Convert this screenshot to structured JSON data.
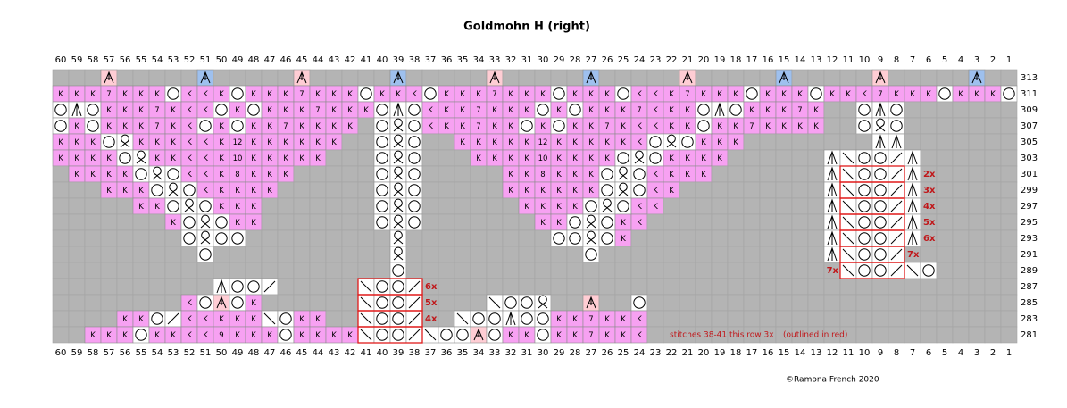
{
  "title": "Goldmohn H (right)",
  "columns": [
    60,
    59,
    58,
    57,
    56,
    55,
    54,
    53,
    52,
    51,
    50,
    49,
    48,
    47,
    46,
    45,
    44,
    43,
    42,
    41,
    40,
    39,
    38,
    37,
    36,
    35,
    34,
    33,
    32,
    31,
    30,
    29,
    28,
    27,
    26,
    25,
    24,
    23,
    22,
    21,
    20,
    19,
    18,
    17,
    16,
    15,
    14,
    13,
    12,
    11,
    10,
    9,
    8,
    7,
    6,
    5,
    4,
    3,
    2,
    1
  ],
  "colors": {
    "stitch": "#f7a1f2",
    "open": "#ffffff",
    "none": "#b4b4b4",
    "dec_pink": "#ffcdd4",
    "dec_blue": "#9ec0ee",
    "repeat": "#e01b1b"
  },
  "rows": [
    {
      "number": 313,
      "cells": [
        ".",
        ".",
        ".",
        "P",
        ".",
        ".",
        ".",
        ".",
        ".",
        "B",
        ".",
        ".",
        ".",
        ".",
        ".",
        "P",
        ".",
        ".",
        ".",
        ".",
        ".",
        "B",
        ".",
        ".",
        ".",
        ".",
        ".",
        "P",
        ".",
        ".",
        ".",
        ".",
        ".",
        "B",
        ".",
        ".",
        ".",
        ".",
        ".",
        "P",
        ".",
        ".",
        ".",
        ".",
        ".",
        "B",
        ".",
        ".",
        ".",
        ".",
        ".",
        "P",
        ".",
        ".",
        ".",
        ".",
        ".",
        "B",
        ".",
        "."
      ]
    },
    {
      "number": 311,
      "cells": [
        "K",
        "K",
        "K",
        "7",
        "K",
        "K",
        "K",
        "o",
        "K",
        "K",
        "K",
        "o",
        "K",
        "K",
        "K",
        "7",
        "K",
        "K",
        "K",
        "o",
        "K",
        "K",
        "K",
        "o",
        "K",
        "K",
        "K",
        "7",
        "K",
        "K",
        "K",
        "o",
        "K",
        "K",
        "K",
        "o",
        "K",
        "K",
        "K",
        "7",
        "K",
        "K",
        "K",
        "o",
        "K",
        "K",
        "K",
        "o",
        "K",
        "K",
        "K",
        "7",
        "K",
        "K",
        "K",
        "o",
        "K",
        "K",
        "K",
        "o"
      ]
    },
    {
      "number": 309,
      "cells": [
        "o",
        "^",
        "o",
        "K",
        "K",
        "K",
        "7",
        "K",
        "K",
        "K",
        "o",
        "K",
        "o",
        "K",
        "K",
        "K",
        "7",
        "K",
        "K",
        "K",
        "o",
        "^",
        "o",
        "K",
        "K",
        "K",
        "7",
        "K",
        "K",
        "K",
        "o",
        "K",
        "o",
        "K",
        "K",
        "K",
        "7",
        "K",
        "K",
        "K",
        "o",
        "^",
        "o",
        "K",
        "K",
        "K",
        "7",
        "K",
        ".",
        ".",
        "o",
        "^",
        "o",
        ".",
        ".",
        ".",
        ".",
        ".",
        ".",
        "."
      ]
    },
    {
      "number": 307,
      "cells": [
        "o",
        "K",
        "o",
        "K",
        "K",
        "K",
        "7",
        "K",
        "K",
        "o",
        "K",
        "o",
        "K",
        "K",
        "7",
        "K",
        "K",
        "K",
        "K",
        ".",
        "o",
        "q",
        "o",
        "K",
        "K",
        "K",
        "7",
        "K",
        "K",
        "o",
        "K",
        "o",
        "K",
        "K",
        "7",
        "K",
        "K",
        "K",
        "K",
        "K",
        "o",
        "K",
        "K",
        "7",
        "K",
        "K",
        "K",
        "K",
        ".",
        ".",
        "o",
        "q",
        "o",
        ".",
        ".",
        ".",
        ".",
        ".",
        ".",
        "."
      ]
    },
    {
      "number": 305,
      "cells": [
        "K",
        "K",
        "K",
        "o",
        "q",
        "K",
        "K",
        "K",
        "K",
        "K",
        "K",
        "12",
        "K",
        "K",
        "K",
        "K",
        "K",
        "K",
        ".",
        ".",
        "o",
        "q",
        "o",
        ".",
        ".",
        "K",
        "K",
        "K",
        "K",
        "K",
        "12",
        "K",
        "K",
        "K",
        "K",
        "K",
        "K",
        "o",
        "q",
        "o",
        "K",
        "K",
        "K",
        ".",
        ".",
        ".",
        ".",
        ".",
        ".",
        ".",
        ".",
        "^",
        "^",
        ".",
        ".",
        ".",
        ".",
        ".",
        ".",
        "."
      ]
    },
    {
      "number": 303,
      "cells": [
        "K",
        "K",
        "K",
        "K",
        "o",
        "q",
        "K",
        "K",
        "K",
        "K",
        "K",
        "10",
        "K",
        "K",
        "K",
        "K",
        "K",
        ".",
        ".",
        ".",
        "o",
        "q",
        "o",
        ".",
        ".",
        ".",
        "K",
        "K",
        "K",
        "K",
        "10",
        "K",
        "K",
        "K",
        "K",
        "o",
        "q",
        "o",
        "K",
        "K",
        "K",
        "K",
        ".",
        ".",
        ".",
        ".",
        ".",
        ".",
        "^",
        "\\",
        "o",
        "o",
        "/",
        "^",
        ".",
        ".",
        ".",
        ".",
        ".",
        "."
      ]
    },
    {
      "number": 301,
      "cells": [
        ".",
        "K",
        "K",
        "K",
        "K",
        "o",
        "q",
        "o",
        "K",
        "K",
        "K",
        "8",
        "K",
        "K",
        "K",
        ".",
        ".",
        ".",
        ".",
        ".",
        "o",
        "q",
        "o",
        ".",
        ".",
        ".",
        ".",
        ".",
        "K",
        "K",
        "8",
        "K",
        "K",
        "K",
        "o",
        "q",
        "o",
        "K",
        "K",
        "K",
        "K",
        ".",
        ".",
        ".",
        ".",
        ".",
        ".",
        ".",
        "^",
        "\\",
        "o",
        "o",
        "/",
        "^",
        ".",
        ".",
        ".",
        ".",
        ".",
        "."
      ]
    },
    {
      "number": 299,
      "cells": [
        ".",
        ".",
        ".",
        "K",
        "K",
        "K",
        "o",
        "q",
        "o",
        "K",
        "K",
        "K",
        "K",
        "K",
        ".",
        ".",
        ".",
        ".",
        ".",
        ".",
        "o",
        "q",
        "o",
        ".",
        ".",
        ".",
        ".",
        ".",
        "K",
        "K",
        "K",
        "K",
        "K",
        "K",
        "o",
        "q",
        "o",
        "K",
        "K",
        ".",
        ".",
        ".",
        ".",
        ".",
        ".",
        ".",
        ".",
        ".",
        "^",
        "\\",
        "o",
        "o",
        "/",
        "^",
        ".",
        ".",
        ".",
        ".",
        ".",
        "."
      ]
    },
    {
      "number": 297,
      "cells": [
        ".",
        ".",
        ".",
        ".",
        ".",
        "K",
        "K",
        "o",
        "q",
        "o",
        "K",
        "K",
        "K",
        ".",
        ".",
        ".",
        ".",
        ".",
        ".",
        ".",
        "o",
        "q",
        "o",
        ".",
        ".",
        ".",
        ".",
        ".",
        ".",
        "K",
        "K",
        "K",
        "K",
        "o",
        "q",
        "o",
        "K",
        "K",
        ".",
        ".",
        ".",
        ".",
        ".",
        ".",
        ".",
        ".",
        ".",
        ".",
        "^",
        "\\",
        "o",
        "o",
        "/",
        "^",
        ".",
        ".",
        ".",
        ".",
        ".",
        "."
      ]
    },
    {
      "number": 295,
      "cells": [
        ".",
        ".",
        ".",
        ".",
        ".",
        ".",
        ".",
        "K",
        "o",
        "q",
        "o",
        "K",
        "K",
        ".",
        ".",
        ".",
        ".",
        ".",
        ".",
        ".",
        "o",
        "q",
        "o",
        ".",
        ".",
        ".",
        ".",
        ".",
        ".",
        ".",
        "K",
        "K",
        "o",
        "q",
        "o",
        "K",
        "K",
        ".",
        ".",
        ".",
        ".",
        ".",
        ".",
        ".",
        ".",
        ".",
        ".",
        ".",
        "^",
        "\\",
        "o",
        "o",
        "/",
        "^",
        ".",
        ".",
        ".",
        ".",
        ".",
        "."
      ]
    },
    {
      "number": 293,
      "cells": [
        ".",
        ".",
        ".",
        ".",
        ".",
        ".",
        ".",
        ".",
        "o",
        "q",
        "o",
        "o",
        ".",
        ".",
        ".",
        ".",
        ".",
        ".",
        ".",
        ".",
        ".",
        "q",
        ".",
        ".",
        ".",
        ".",
        ".",
        ".",
        ".",
        ".",
        ".",
        "o",
        "o",
        "q",
        "o",
        "K",
        ".",
        ".",
        ".",
        ".",
        ".",
        ".",
        ".",
        ".",
        ".",
        ".",
        ".",
        ".",
        "^",
        "\\",
        "o",
        "o",
        "/",
        "^",
        ".",
        ".",
        ".",
        ".",
        ".",
        "."
      ]
    },
    {
      "number": 291,
      "cells": [
        ".",
        ".",
        ".",
        ".",
        ".",
        ".",
        ".",
        ".",
        ".",
        "o",
        ".",
        ".",
        ".",
        ".",
        ".",
        ".",
        ".",
        ".",
        ".",
        ".",
        ".",
        "q",
        ".",
        ".",
        ".",
        ".",
        ".",
        ".",
        ".",
        ".",
        ".",
        ".",
        ".",
        "o",
        ".",
        ".",
        ".",
        ".",
        ".",
        ".",
        ".",
        ".",
        ".",
        ".",
        ".",
        ".",
        ".",
        ".",
        "^",
        "\\",
        "o",
        "o",
        "/",
        ".",
        ".",
        ".",
        ".",
        ".",
        ".",
        "."
      ]
    },
    {
      "number": 289,
      "cells": [
        ".",
        ".",
        ".",
        ".",
        ".",
        ".",
        ".",
        ".",
        ".",
        ".",
        ".",
        ".",
        ".",
        ".",
        ".",
        ".",
        ".",
        ".",
        ".",
        ".",
        ".",
        "o",
        ".",
        ".",
        ".",
        ".",
        ".",
        ".",
        ".",
        ".",
        ".",
        ".",
        ".",
        ".",
        ".",
        ".",
        ".",
        ".",
        ".",
        ".",
        ".",
        ".",
        ".",
        ".",
        ".",
        ".",
        ".",
        ".",
        ".",
        "\\",
        "o",
        "o",
        "/",
        "\\",
        "o",
        ".",
        ".",
        ".",
        ".",
        "."
      ]
    },
    {
      "number": 287,
      "cells": [
        ".",
        ".",
        ".",
        ".",
        ".",
        ".",
        ".",
        ".",
        ".",
        ".",
        "^",
        "o",
        "o",
        "/",
        ".",
        ".",
        ".",
        ".",
        ".",
        "\\",
        "o",
        "o",
        "/",
        ".",
        ".",
        ".",
        ".",
        ".",
        ".",
        ".",
        ".",
        ".",
        ".",
        ".",
        ".",
        ".",
        ".",
        ".",
        ".",
        ".",
        ".",
        ".",
        ".",
        ".",
        ".",
        ".",
        ".",
        ".",
        ".",
        ".",
        ".",
        ".",
        ".",
        ".",
        ".",
        ".",
        ".",
        ".",
        ".",
        "."
      ]
    },
    {
      "number": 285,
      "cells": [
        ".",
        ".",
        ".",
        ".",
        ".",
        ".",
        ".",
        ".",
        "K",
        "o",
        "P",
        "o",
        "K",
        ".",
        ".",
        ".",
        ".",
        ".",
        ".",
        "\\",
        "o",
        "o",
        "/",
        ".",
        ".",
        ".",
        ".",
        "\\",
        "o",
        "o",
        "q",
        ".",
        ".",
        "P",
        ".",
        ".",
        "o",
        ".",
        ".",
        ".",
        ".",
        ".",
        ".",
        ".",
        ".",
        ".",
        ".",
        ".",
        ".",
        ".",
        ".",
        ".",
        ".",
        ".",
        ".",
        ".",
        ".",
        ".",
        ".",
        "."
      ]
    },
    {
      "number": 283,
      "cells": [
        ".",
        ".",
        ".",
        ".",
        "K",
        "K",
        "o",
        "/",
        "K",
        "K",
        "K",
        "K",
        "K",
        "\\",
        "o",
        "K",
        "K",
        ".",
        ".",
        "\\",
        "o",
        "o",
        "/",
        ".",
        ".",
        "\\",
        "o",
        "o",
        "^",
        "o",
        "o",
        "K",
        "K",
        "7",
        "K",
        "K",
        "K",
        ".",
        ".",
        ".",
        ".",
        ".",
        ".",
        ".",
        ".",
        ".",
        ".",
        ".",
        ".",
        ".",
        ".",
        ".",
        ".",
        ".",
        ".",
        ".",
        ".",
        ".",
        ".",
        "."
      ]
    },
    {
      "number": 281,
      "cells": [
        ".",
        ".",
        "K",
        "K",
        "K",
        "o",
        "K",
        "K",
        "K",
        "K",
        "9",
        "K",
        "K",
        "K",
        "o",
        "K",
        "K",
        "K",
        "K",
        "\\",
        "o",
        "o",
        "/",
        "\\",
        "o",
        "o",
        "P",
        "o",
        "K",
        "K",
        "o",
        "K",
        "K",
        "7",
        "K",
        "K",
        "K",
        ".",
        ".",
        ".",
        ".",
        ".",
        ".",
        ".",
        ".",
        ".",
        ".",
        ".",
        ".",
        ".",
        ".",
        ".",
        ".",
        ".",
        ".",
        ".",
        ".",
        ".",
        ".",
        "."
      ]
    }
  ],
  "repeats": [
    {
      "row": 301,
      "cols": [
        11,
        8
      ],
      "label": "2x",
      "side": "right"
    },
    {
      "row": 299,
      "cols": [
        11,
        8
      ],
      "label": "3x",
      "side": "right"
    },
    {
      "row": 297,
      "cols": [
        11,
        8
      ],
      "label": "4x",
      "side": "right"
    },
    {
      "row": 295,
      "cols": [
        11,
        8
      ],
      "label": "5x",
      "side": "right"
    },
    {
      "row": 293,
      "cols": [
        11,
        8
      ],
      "label": "6x",
      "side": "right"
    },
    {
      "row": 291,
      "cols": [
        11,
        8
      ],
      "label": "7x",
      "side": "right"
    },
    {
      "row": 289,
      "cols": [
        11,
        8
      ],
      "label": "7x",
      "side": "left"
    },
    {
      "row": 287,
      "cols": [
        41,
        38
      ],
      "label": "6x",
      "side": "right"
    },
    {
      "row": 285,
      "cols": [
        41,
        38
      ],
      "label": "5x",
      "side": "right"
    },
    {
      "row": 283,
      "cols": [
        41,
        38
      ],
      "label": "4x",
      "side": "right"
    },
    {
      "row": 281,
      "cols": [
        41,
        38
      ]
    }
  ],
  "note": "stitches 38-41 this row 3x",
  "note2": "(outlined in red)",
  "copyright": "©Ramona French 2020"
}
